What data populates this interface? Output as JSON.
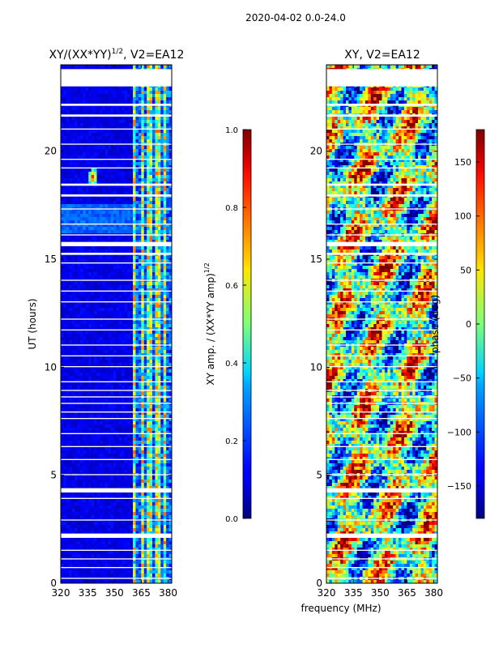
{
  "figure": {
    "suptitle": "2020-04-02 0.0-24.0",
    "xlabel": "frequency (MHz)"
  },
  "colors": {
    "background": "#ffffff",
    "gap": "#ffffff",
    "axis": "#000000"
  },
  "chart_data": [
    {
      "type": "heatmap",
      "title_main": "XY/(XX*YY)",
      "title_sup": "1/2",
      "title_rest": ", V2=EA12",
      "ylabel": "UT (hours)",
      "xlim": [
        320,
        382
      ],
      "ylim": [
        0,
        24
      ],
      "xticks": [
        320,
        335,
        350,
        365,
        380
      ],
      "yticks": [
        0,
        5,
        10,
        15,
        20
      ],
      "colormap": "jet",
      "colorbar": {
        "label_main": "XY amp. / (XX*YY amp)",
        "label_sup": "1/2",
        "range": [
          0.0,
          1.0
        ],
        "ticks": [
          "0.0",
          "0.2",
          "0.4",
          "0.6",
          "0.8",
          "1.0"
        ]
      },
      "description": "Mostly low values (0.0-0.15) at 320-360 MHz; elevated values (0.3-0.7) in vertical bands at 360-380 MHz; isolated bright feature near 338 MHz at ~18.8 h",
      "bright_spot": {
        "freq_mhz": 338,
        "ut_hours": 18.8,
        "value": 0.9
      }
    },
    {
      "type": "heatmap",
      "title_main": "XY, V2=EA12",
      "xlim": [
        320,
        382
      ],
      "ylim": [
        0,
        24
      ],
      "xticks": [
        320,
        335,
        350,
        365,
        380
      ],
      "yticks": [
        0,
        5,
        10,
        15,
        20
      ],
      "colormap": "jet",
      "colorbar": {
        "label_main": "phase (deg)",
        "range": [
          -180,
          180
        ],
        "ticks": [
          "-150",
          "-100",
          "-50",
          "0",
          "50",
          "100",
          "150"
        ]
      },
      "description": "Noisy phase spanning the full -180 to 180 degree range"
    }
  ],
  "flagged_time_ranges": [
    [
      23.0,
      23.8
    ],
    [
      22.1,
      22.2
    ],
    [
      21.6,
      21.7
    ],
    [
      21.0,
      21.05
    ],
    [
      20.3,
      20.35
    ],
    [
      19.6,
      19.65
    ],
    [
      19.2,
      19.25
    ],
    [
      18.4,
      18.5
    ],
    [
      17.9,
      18.0
    ],
    [
      17.3,
      17.35
    ],
    [
      16.6,
      16.65
    ],
    [
      16.1,
      16.15
    ],
    [
      15.6,
      15.8
    ],
    [
      15.2,
      15.3
    ],
    [
      14.8,
      14.85
    ],
    [
      14.0,
      14.05
    ],
    [
      13.5,
      13.55
    ],
    [
      13.0,
      13.05
    ],
    [
      12.2,
      12.25
    ],
    [
      11.7,
      11.75
    ],
    [
      11.0,
      11.05
    ],
    [
      10.5,
      10.55
    ],
    [
      10.0,
      10.05
    ],
    [
      9.3,
      9.35
    ],
    [
      8.9,
      8.95
    ],
    [
      8.6,
      8.65
    ],
    [
      8.3,
      8.35
    ],
    [
      7.9,
      7.95
    ],
    [
      7.6,
      7.65
    ],
    [
      6.9,
      6.95
    ],
    [
      6.3,
      6.35
    ],
    [
      5.7,
      5.75
    ],
    [
      5.0,
      5.05
    ],
    [
      4.2,
      4.4
    ],
    [
      3.9,
      3.95
    ],
    [
      2.9,
      2.95
    ],
    [
      2.1,
      2.3
    ],
    [
      1.5,
      1.55
    ],
    [
      1.1,
      1.15
    ],
    [
      0.7,
      0.75
    ],
    [
      0.2,
      0.25
    ]
  ]
}
